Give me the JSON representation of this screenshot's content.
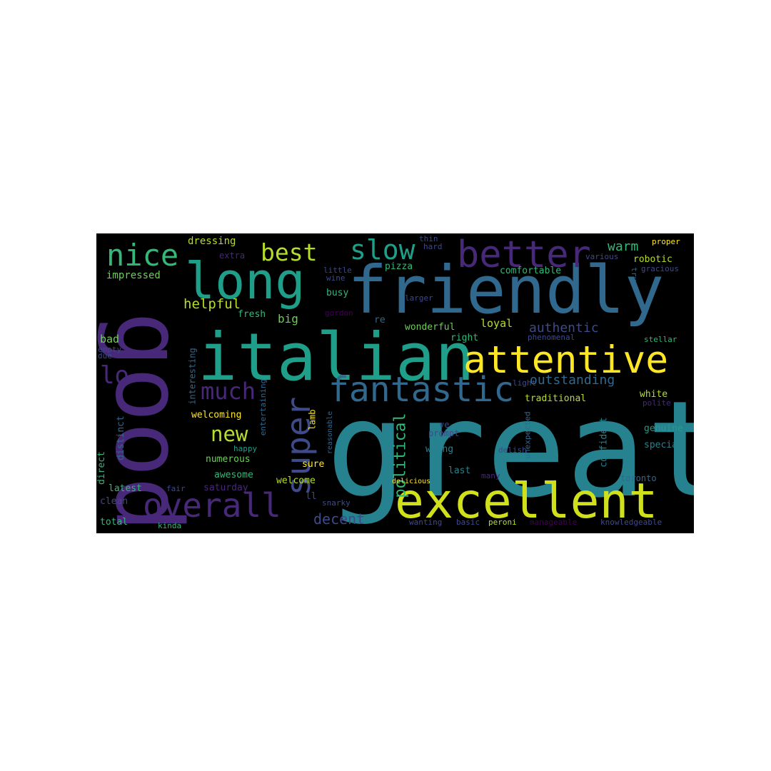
{
  "wordcloud": {
    "background": "#000000",
    "palette": [
      "#440154",
      "#482878",
      "#3e4a89",
      "#31688e",
      "#26828e",
      "#1f9e89",
      "#35b779",
      "#6ece58",
      "#b5de2b",
      "#fde725"
    ],
    "words": [
      {
        "text": "great",
        "color": "#26828e"
      },
      {
        "text": "italian",
        "color": "#1f9e89"
      },
      {
        "text": "friendly",
        "color": "#31688e"
      },
      {
        "text": "good",
        "color": "#482878"
      },
      {
        "text": "excellent",
        "color": "#d0e11c"
      },
      {
        "text": "attentive",
        "color": "#fde725"
      },
      {
        "text": "long",
        "color": "#1f9e89"
      },
      {
        "text": "fantastic",
        "color": "#31688e"
      },
      {
        "text": "better",
        "color": "#482878"
      },
      {
        "text": "overall",
        "color": "#482878"
      },
      {
        "text": "nice",
        "color": "#35b779"
      },
      {
        "text": "super",
        "color": "#3e4a89"
      },
      {
        "text": "slow",
        "color": "#1f9e89"
      },
      {
        "text": "best",
        "color": "#b5de2b"
      },
      {
        "text": "much",
        "color": "#482878"
      },
      {
        "text": "new",
        "color": "#b5de2b"
      },
      {
        "text": "lo",
        "color": "#482878"
      },
      {
        "text": "political",
        "color": "#35b779"
      },
      {
        "text": "outstanding",
        "color": "#31688e"
      },
      {
        "text": "warm",
        "color": "#35b779"
      },
      {
        "text": "authentic",
        "color": "#3e4a89"
      },
      {
        "text": "helpful",
        "color": "#b5de2b"
      },
      {
        "text": "decent",
        "color": "#3e4a89"
      },
      {
        "text": "dressing",
        "color": "#b5de2b"
      },
      {
        "text": "impressed",
        "color": "#6ece58"
      },
      {
        "text": "extra",
        "color": "#482878"
      },
      {
        "text": "busy",
        "color": "#35b779"
      },
      {
        "text": "pizza",
        "color": "#35b779"
      },
      {
        "text": "comfortable",
        "color": "#35b779"
      },
      {
        "text": "robotic",
        "color": "#b5de2b"
      },
      {
        "text": "big",
        "color": "#6ece58"
      },
      {
        "text": "fresh",
        "color": "#35b779"
      },
      {
        "text": "bad",
        "color": "#6ece58"
      },
      {
        "text": "wonderful",
        "color": "#6ece58"
      },
      {
        "text": "loyal",
        "color": "#b5de2b"
      },
      {
        "text": "right",
        "color": "#35b779"
      },
      {
        "text": "traditional",
        "color": "#b5de2b"
      },
      {
        "text": "white",
        "color": "#b5de2b"
      },
      {
        "text": "genuine",
        "color": "#1f9e89"
      },
      {
        "text": "special",
        "color": "#26828e"
      },
      {
        "text": "confident",
        "color": "#26828e"
      },
      {
        "text": "welcoming",
        "color": "#fde725"
      },
      {
        "text": "numerous",
        "color": "#6ece58"
      },
      {
        "text": "awesome",
        "color": "#35b779"
      },
      {
        "text": "saturday",
        "color": "#482878"
      },
      {
        "text": "welcome",
        "color": "#b5de2b"
      },
      {
        "text": "sure",
        "color": "#fde725"
      },
      {
        "text": "wrong",
        "color": "#26828e"
      },
      {
        "text": "last",
        "color": "#26828e"
      },
      {
        "text": "latest",
        "color": "#35b779"
      },
      {
        "text": "clean",
        "color": "#3e4a89"
      },
      {
        "text": "total",
        "color": "#35b779"
      },
      {
        "text": "direct",
        "color": "#35b779"
      },
      {
        "text": "distinct",
        "color": "#31688e"
      },
      {
        "text": "interesting",
        "color": "#31688e"
      },
      {
        "text": "entertaining",
        "color": "#31688e"
      },
      {
        "text": "reasonable",
        "color": "#31688e"
      },
      {
        "text": "lamb",
        "color": "#fde725"
      },
      {
        "text": "prompt",
        "color": "#3e4a89"
      },
      {
        "text": "delish",
        "color": "#3e4a89"
      },
      {
        "text": "unexpected",
        "color": "#31688e"
      },
      {
        "text": "toronto",
        "color": "#31688e"
      },
      {
        "text": "polite",
        "color": "#482878"
      },
      {
        "text": "stellar",
        "color": "#35b779"
      },
      {
        "text": "phenomenal",
        "color": "#3e4a89"
      },
      {
        "text": "light",
        "color": "#3e4a89"
      },
      {
        "text": "true",
        "color": "#31688e"
      },
      {
        "text": "gracious",
        "color": "#3e4a89"
      },
      {
        "text": "various",
        "color": "#3e4a89"
      },
      {
        "text": "proper",
        "color": "#fde725"
      },
      {
        "text": "thin",
        "color": "#3e4a89"
      },
      {
        "text": "hard",
        "color": "#3e4a89"
      },
      {
        "text": "little",
        "color": "#3e4a89"
      },
      {
        "text": "wine",
        "color": "#3e4a89"
      },
      {
        "text": "larger",
        "color": "#3e4a89"
      },
      {
        "text": "gordon",
        "color": "#440154"
      },
      {
        "text": "re",
        "color": "#31688e"
      },
      {
        "text": "ve",
        "color": "#3e4a89"
      },
      {
        "text": "ll",
        "color": "#3e4a89"
      },
      {
        "text": "happy",
        "color": "#1f9e89"
      },
      {
        "text": "fair",
        "color": "#3e4a89"
      },
      {
        "text": "due",
        "color": "#3e4a89"
      },
      {
        "text": "empty",
        "color": "#3e4a89"
      },
      {
        "text": "kinda",
        "color": "#35b779"
      },
      {
        "text": "snarky",
        "color": "#3e4a89"
      },
      {
        "text": "delicious",
        "color": "#fde725"
      },
      {
        "text": "many",
        "color": "#482878"
      },
      {
        "text": "wanting",
        "color": "#3e4a89"
      },
      {
        "text": "basic",
        "color": "#3e4a89"
      },
      {
        "text": "peroni",
        "color": "#b5de2b"
      },
      {
        "text": "manageable",
        "color": "#440154"
      },
      {
        "text": "knowledgeable",
        "color": "#3e4a89"
      }
    ]
  }
}
